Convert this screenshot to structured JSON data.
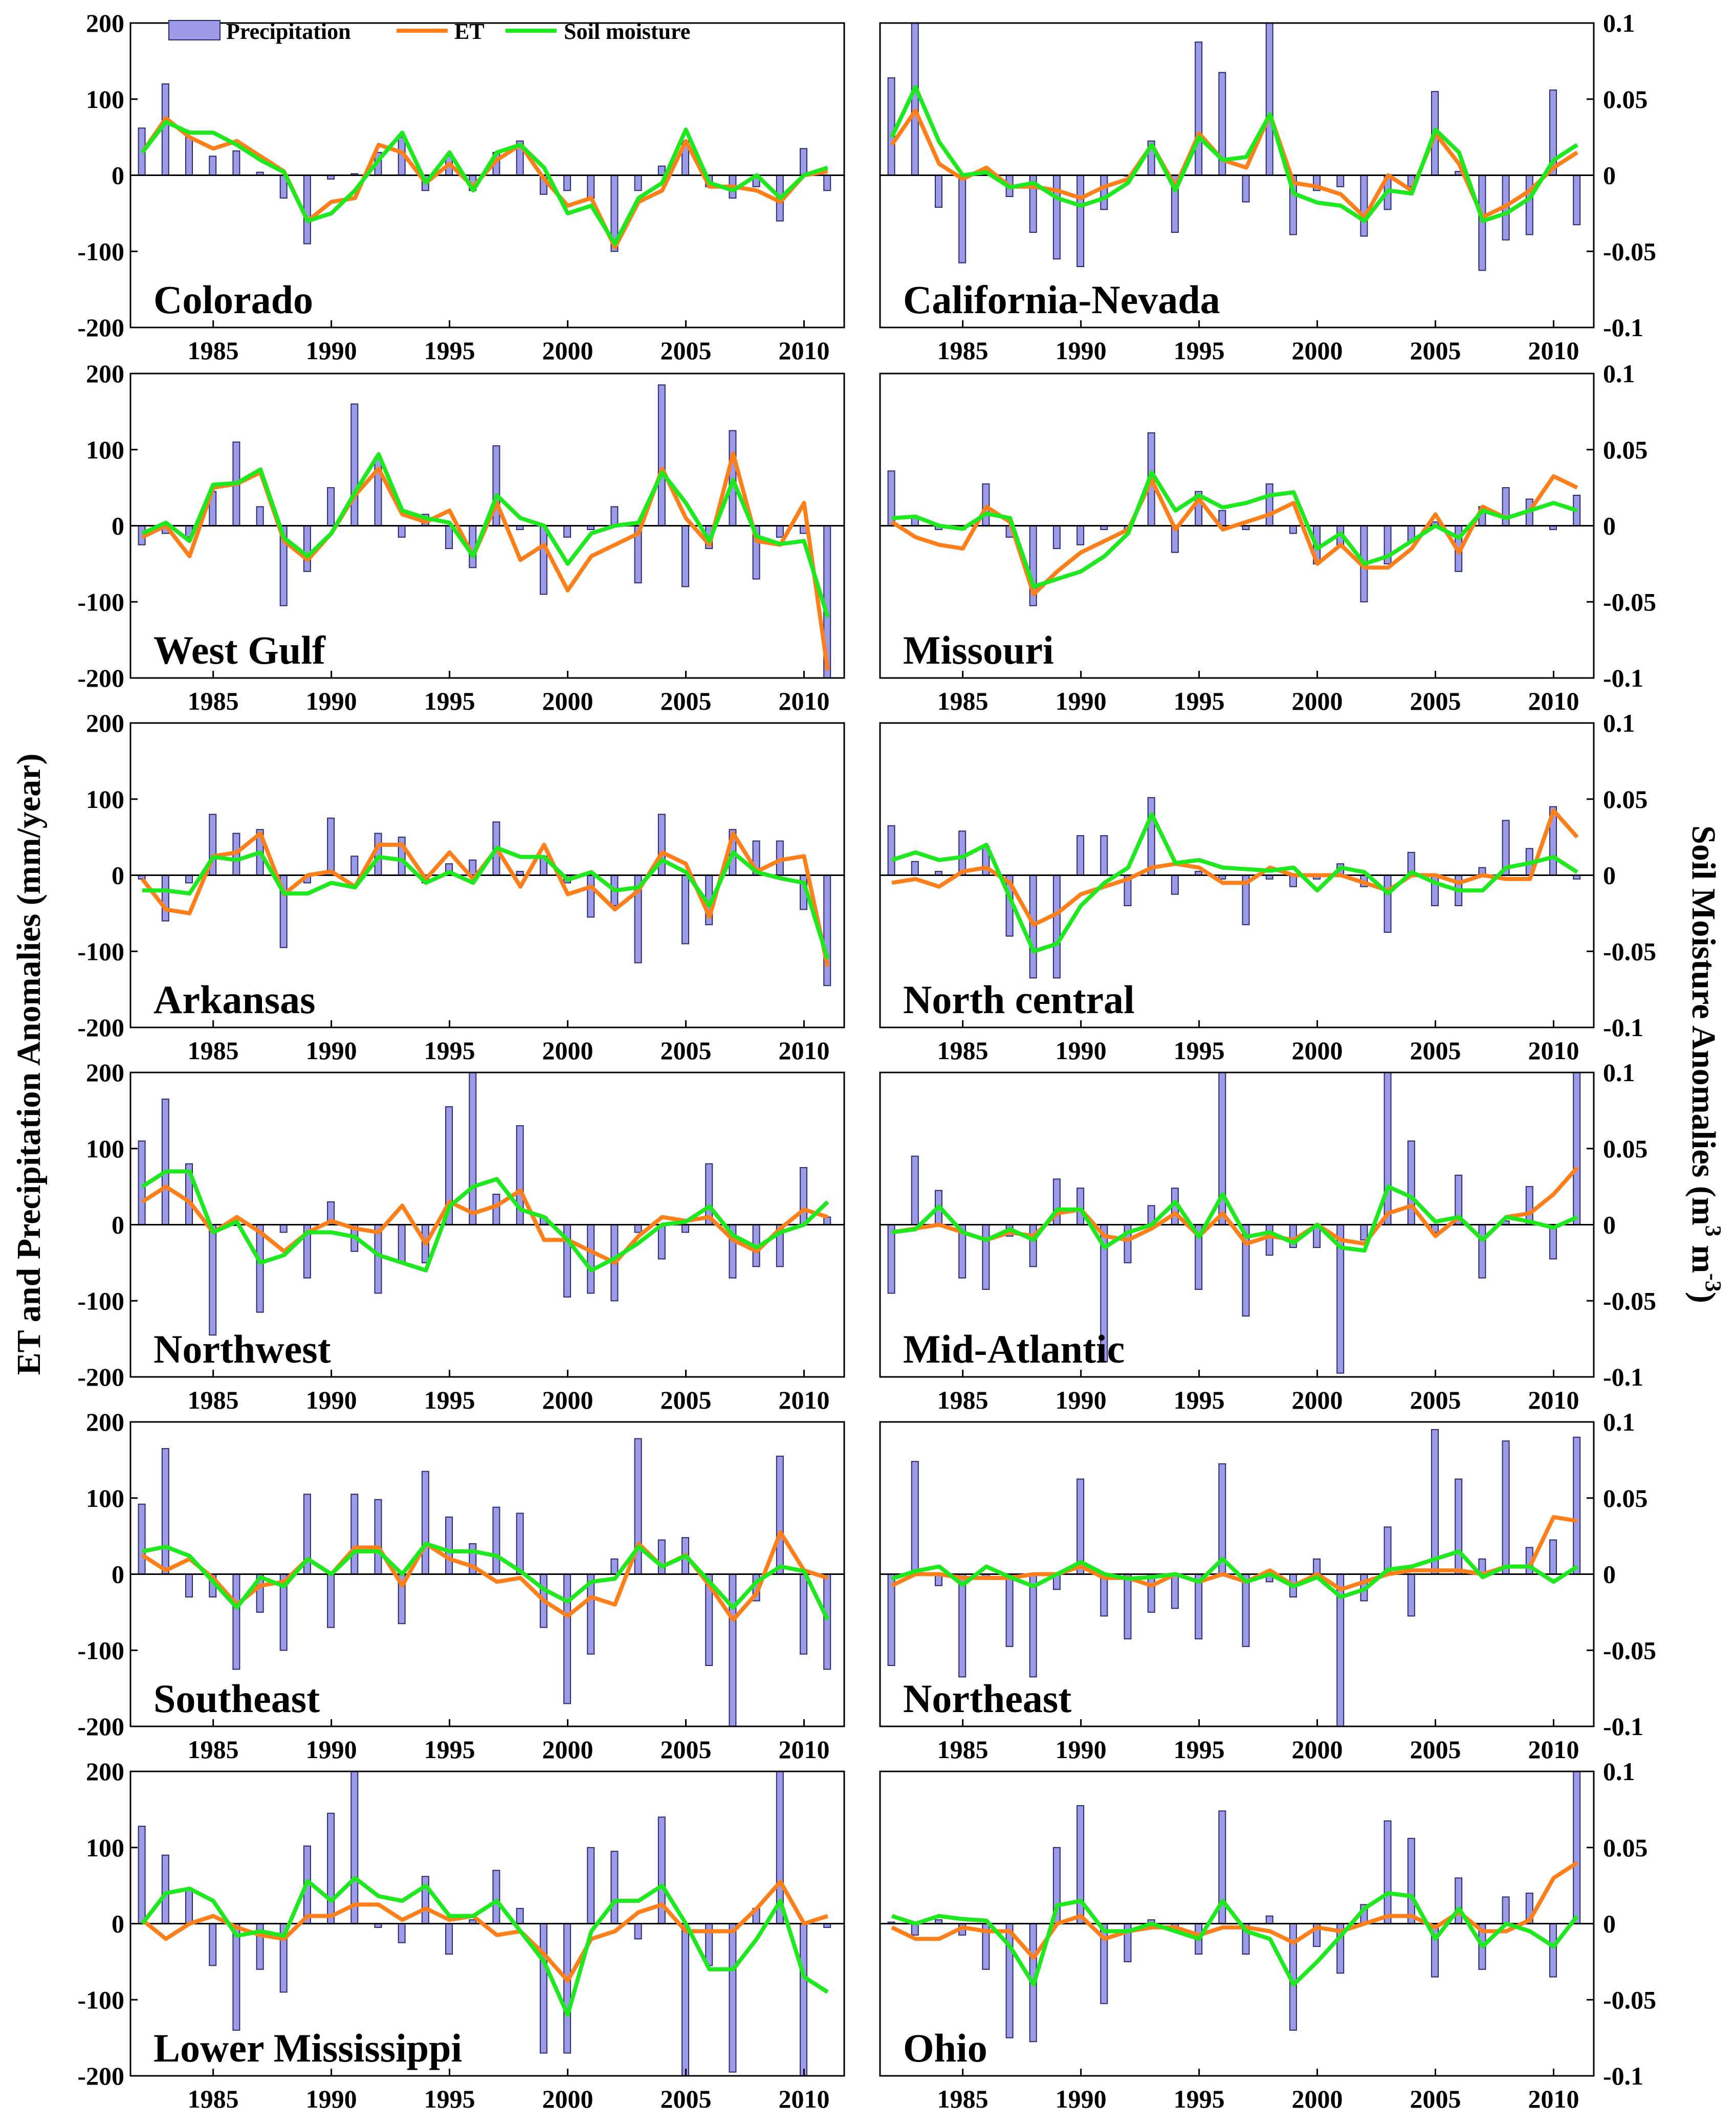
{
  "chart_data": {
    "type": "bar+line",
    "y_axis_left_label": "ET and Precipitation Anomalies (mm/year)",
    "y_axis_right_label": "Soil Moisture Anomalies (m³ m⁻³)",
    "y_axis_right_label_parts": [
      "Soil Moisture Anomalies (m",
      "3",
      " m",
      "-3",
      ")"
    ],
    "ylim_left": [
      -200,
      200
    ],
    "ylim_right": [
      -0.1,
      0.1
    ],
    "yticks_left": [
      "200",
      "100",
      "0",
      "-100",
      "-200"
    ],
    "yticks_right": [
      "0.1",
      "0.05",
      "0",
      "-0.05",
      "-0.1"
    ],
    "xticks": [
      "1985",
      "1990",
      "1995",
      "2000",
      "2005",
      "2010"
    ],
    "xlim": [
      1981.5,
      2011.7
    ],
    "years": [
      1982,
      1983,
      1984,
      1985,
      1986,
      1987,
      1988,
      1989,
      1990,
      1991,
      1992,
      1993,
      1994,
      1995,
      1996,
      1997,
      1998,
      1999,
      2000,
      2001,
      2002,
      2003,
      2004,
      2005,
      2006,
      2007,
      2008,
      2009,
      2010,
      2011
    ],
    "legend": [
      "Precipitation",
      "ET",
      "Soil moisture"
    ],
    "colors": {
      "precipitation": "#9b9bea",
      "precipitation_edge": "#2b2b6b",
      "et": "#ff7f1a",
      "soil_moisture": "#1ee81e"
    },
    "series_units": {
      "precipitation": "mm/year",
      "et": "mm/year",
      "soil_moisture": "m3 m-3"
    },
    "panels": [
      {
        "name": "Colorado",
        "precipitation": [
          62,
          120,
          50,
          25,
          32,
          4,
          -30,
          -90,
          -5,
          2,
          30,
          50,
          -20,
          25,
          -20,
          30,
          45,
          -25,
          -20,
          -30,
          -100,
          -20,
          12,
          45,
          -15,
          -30,
          -15,
          -60,
          35,
          -20
        ],
        "et": [
          30,
          75,
          50,
          35,
          45,
          25,
          5,
          -60,
          -35,
          -30,
          40,
          30,
          -10,
          15,
          -15,
          20,
          40,
          -5,
          -40,
          -30,
          -95,
          -35,
          -20,
          45,
          -15,
          -15,
          -20,
          -35,
          0,
          5
        ],
        "soil_moisture": [
          0.015,
          0.035,
          0.028,
          0.028,
          0.02,
          0.01,
          0.002,
          -0.03,
          -0.025,
          -0.01,
          0.01,
          0.028,
          -0.005,
          0.015,
          -0.01,
          0.015,
          0.02,
          0.005,
          -0.025,
          -0.02,
          -0.045,
          -0.015,
          -0.005,
          0.03,
          -0.005,
          -0.01,
          0,
          -0.015,
          0,
          0.005
        ]
      },
      {
        "name": "California-Nevada",
        "precipitation": [
          128,
          210,
          -42,
          -115,
          5,
          -28,
          -75,
          -110,
          -120,
          -45,
          0,
          45,
          -75,
          175,
          135,
          -35,
          210,
          -78,
          -20,
          -15,
          -80,
          -45,
          -15,
          110,
          5,
          -125,
          -85,
          -78,
          112,
          -65
        ],
        "et": [
          40,
          85,
          15,
          -5,
          10,
          -15,
          -15,
          -20,
          -30,
          -15,
          -5,
          40,
          -15,
          55,
          20,
          10,
          80,
          -10,
          -15,
          -25,
          -55,
          0,
          -20,
          55,
          15,
          -55,
          -40,
          -20,
          10,
          30
        ],
        "soil_moisture": [
          0.025,
          0.058,
          0.022,
          0,
          0.002,
          -0.008,
          -0.005,
          -0.015,
          -0.02,
          -0.015,
          -0.005,
          0.02,
          -0.01,
          0.025,
          0.01,
          0.012,
          0.04,
          -0.012,
          -0.018,
          -0.02,
          -0.03,
          -0.01,
          -0.012,
          0.03,
          0.015,
          -0.03,
          -0.025,
          -0.015,
          0.01,
          0.02
        ]
      },
      {
        "name": "West Gulf",
        "precipitation": [
          -25,
          -10,
          -15,
          45,
          110,
          25,
          -105,
          -60,
          50,
          160,
          90,
          -15,
          15,
          -30,
          -55,
          105,
          -5,
          -90,
          -15,
          -5,
          25,
          -75,
          185,
          -80,
          -30,
          125,
          -70,
          -15,
          -10,
          -200
        ],
        "et": [
          -15,
          0,
          -40,
          50,
          55,
          70,
          -20,
          -45,
          -10,
          40,
          75,
          15,
          5,
          20,
          -40,
          30,
          -45,
          -25,
          -85,
          -40,
          -25,
          -10,
          75,
          10,
          -25,
          95,
          -20,
          -25,
          30,
          -190
        ],
        "soil_moisture": [
          -0.005,
          0.002,
          -0.01,
          0.027,
          0.028,
          0.037,
          -0.008,
          -0.02,
          -0.005,
          0.022,
          0.047,
          0.01,
          0.005,
          0.002,
          -0.02,
          0.02,
          0.005,
          0,
          -0.025,
          -0.005,
          0,
          0.002,
          0.035,
          0.015,
          -0.01,
          0.03,
          -0.007,
          -0.012,
          -0.01,
          -0.06
        ]
      },
      {
        "name": "Missouri",
        "precipitation": [
          72,
          10,
          -5,
          -5,
          55,
          -15,
          -105,
          -30,
          -25,
          -5,
          -5,
          122,
          -35,
          45,
          20,
          -5,
          55,
          -10,
          -50,
          -25,
          -100,
          -50,
          -20,
          5,
          -60,
          25,
          50,
          35,
          -5,
          40
        ],
        "et": [
          5,
          -15,
          -25,
          -30,
          25,
          5,
          -90,
          -60,
          -35,
          -20,
          -5,
          60,
          -5,
          35,
          -5,
          5,
          15,
          30,
          -50,
          -25,
          -55,
          -55,
          -30,
          15,
          -35,
          25,
          10,
          20,
          65,
          50
        ],
        "soil_moisture": [
          0.005,
          0.006,
          0,
          -0.002,
          0.008,
          0.005,
          -0.04,
          -0.035,
          -0.03,
          -0.02,
          -0.005,
          0.035,
          0.01,
          0.02,
          0.012,
          0.015,
          0.02,
          0.022,
          -0.015,
          -0.005,
          -0.025,
          -0.02,
          -0.01,
          0,
          -0.008,
          0.01,
          0.005,
          0.01,
          0.015,
          0.01
        ]
      },
      {
        "name": "Arkansas",
        "precipitation": [
          -5,
          -60,
          -10,
          80,
          55,
          60,
          -95,
          -10,
          75,
          25,
          55,
          50,
          -10,
          15,
          20,
          70,
          5,
          25,
          -10,
          -55,
          -40,
          -115,
          80,
          -90,
          -65,
          60,
          45,
          45,
          -45,
          -145
        ],
        "et": [
          -5,
          -45,
          -50,
          25,
          30,
          55,
          -25,
          0,
          5,
          -15,
          40,
          40,
          -5,
          30,
          -5,
          35,
          -15,
          40,
          -25,
          -15,
          -45,
          -20,
          30,
          15,
          -55,
          55,
          5,
          20,
          25,
          -120
        ],
        "soil_moisture": [
          -0.01,
          -0.01,
          -0.012,
          0.012,
          0.01,
          0.015,
          -0.012,
          -0.012,
          -0.005,
          -0.008,
          0.012,
          0.01,
          -0.005,
          0.002,
          -0.005,
          0.018,
          0.012,
          0.012,
          -0.003,
          0.002,
          -0.01,
          -0.008,
          0.01,
          0.002,
          -0.02,
          0.015,
          0.002,
          -0.002,
          -0.005,
          -0.055
        ]
      },
      {
        "name": "North central",
        "precipitation": [
          65,
          18,
          5,
          58,
          38,
          -80,
          -135,
          -135,
          52,
          52,
          -40,
          102,
          -25,
          5,
          -5,
          -65,
          -5,
          -15,
          -5,
          15,
          -15,
          -75,
          30,
          -40,
          -40,
          10,
          72,
          35,
          90,
          -5
        ],
        "et": [
          -10,
          -5,
          -15,
          5,
          10,
          -10,
          -65,
          -50,
          -25,
          -15,
          -5,
          10,
          15,
          10,
          -10,
          -10,
          10,
          0,
          0,
          0,
          -10,
          -20,
          0,
          0,
          -10,
          0,
          -5,
          -5,
          85,
          50
        ],
        "soil_moisture": [
          0.01,
          0.015,
          0.01,
          0.012,
          0.02,
          -0.015,
          -0.05,
          -0.045,
          -0.02,
          -0.005,
          0.005,
          0.04,
          0.008,
          0.01,
          0.005,
          0.004,
          0.003,
          0.005,
          -0.01,
          0.005,
          0.002,
          -0.012,
          0.002,
          -0.005,
          -0.01,
          -0.01,
          0.005,
          0.008,
          0.012,
          0.002
        ]
      },
      {
        "name": "Northwest",
        "precipitation": [
          110,
          165,
          80,
          -145,
          0,
          -115,
          -10,
          -70,
          30,
          -35,
          -90,
          -50,
          -50,
          155,
          200,
          40,
          130,
          10,
          -95,
          -90,
          -100,
          -10,
          -45,
          -10,
          80,
          -70,
          -55,
          -55,
          75,
          10
        ],
        "et": [
          30,
          50,
          30,
          -10,
          10,
          -10,
          -35,
          -10,
          5,
          -5,
          -10,
          25,
          -25,
          30,
          15,
          25,
          45,
          -20,
          -20,
          -35,
          -50,
          -15,
          10,
          5,
          10,
          -20,
          -35,
          -5,
          20,
          10
        ],
        "soil_moisture": [
          0.025,
          0.035,
          0.035,
          -0.005,
          0.002,
          -0.025,
          -0.02,
          -0.005,
          -0.005,
          -0.008,
          -0.02,
          -0.025,
          -0.03,
          0.012,
          0.025,
          0.03,
          0.01,
          0.005,
          -0.01,
          -0.03,
          -0.022,
          -0.012,
          0,
          0.002,
          0.012,
          -0.007,
          -0.015,
          -0.005,
          0,
          0.015
        ]
      },
      {
        "name": "Mid-Atlantic",
        "precipitation": [
          -90,
          90,
          45,
          -70,
          -85,
          -15,
          -55,
          60,
          48,
          -180,
          -50,
          25,
          48,
          -85,
          200,
          -120,
          -40,
          -30,
          -30,
          -195,
          -20,
          200,
          110,
          -10,
          65,
          -70,
          5,
          50,
          -45,
          200
        ],
        "et": [
          -10,
          -5,
          0,
          -10,
          -20,
          -10,
          -15,
          15,
          20,
          -15,
          -20,
          -5,
          15,
          -15,
          15,
          -25,
          -15,
          -20,
          0,
          -20,
          -25,
          15,
          25,
          -15,
          10,
          -20,
          10,
          15,
          40,
          75
        ],
        "soil_moisture": [
          -0.005,
          -0.003,
          0.012,
          -0.005,
          -0.01,
          -0.003,
          -0.01,
          0.01,
          0.01,
          -0.015,
          -0.005,
          0,
          0.015,
          -0.008,
          0.02,
          -0.008,
          -0.005,
          -0.012,
          0,
          -0.015,
          -0.017,
          0.025,
          0.018,
          0.002,
          0.005,
          -0.01,
          0.005,
          0.002,
          -0.002,
          0.005
        ]
      },
      {
        "name": "Southeast",
        "precipitation": [
          92,
          165,
          -30,
          -30,
          -125,
          -50,
          -100,
          105,
          -70,
          105,
          98,
          -65,
          135,
          75,
          40,
          88,
          80,
          -70,
          -170,
          -105,
          20,
          178,
          45,
          48,
          -120,
          -200,
          -35,
          155,
          -105,
          -125
        ],
        "et": [
          25,
          5,
          20,
          -5,
          -40,
          -15,
          -10,
          20,
          0,
          35,
          35,
          -15,
          40,
          20,
          10,
          -10,
          -5,
          -35,
          -55,
          -30,
          -40,
          40,
          10,
          25,
          -15,
          -60,
          -25,
          55,
          5,
          -5
        ],
        "soil_moisture": [
          0.015,
          0.018,
          0.012,
          -0.005,
          -0.022,
          -0.002,
          -0.008,
          0.01,
          0,
          0.015,
          0.015,
          0,
          0.02,
          0.015,
          0.015,
          0.012,
          0.002,
          -0.01,
          -0.018,
          -0.005,
          -0.003,
          0.018,
          0.005,
          0.012,
          -0.005,
          -0.022,
          -0.005,
          0.005,
          0.002,
          -0.03
        ]
      },
      {
        "name": "Northeast",
        "precipitation": [
          -120,
          148,
          -15,
          -135,
          -5,
          -95,
          -135,
          -20,
          125,
          -55,
          -85,
          -50,
          -45,
          -85,
          145,
          -95,
          -10,
          -30,
          20,
          -200,
          -35,
          62,
          -55,
          190,
          125,
          20,
          175,
          35,
          45,
          180
        ],
        "et": [
          -15,
          0,
          0,
          -5,
          -5,
          -5,
          0,
          0,
          10,
          -5,
          -5,
          -15,
          0,
          -10,
          0,
          -10,
          5,
          -15,
          0,
          -20,
          -10,
          0,
          5,
          5,
          5,
          0,
          10,
          10,
          75,
          70
        ],
        "soil_moisture": [
          -0.003,
          0.002,
          0.005,
          -0.007,
          0.005,
          -0.002,
          -0.008,
          0,
          0.008,
          0,
          -0.003,
          -0.002,
          0,
          -0.005,
          0.01,
          -0.005,
          0,
          -0.008,
          -0.002,
          -0.015,
          -0.01,
          0.003,
          0.005,
          0.01,
          0.015,
          -0.002,
          0.005,
          0.005,
          -0.005,
          0.005
        ]
      },
      {
        "name": "Lower Mississippi",
        "precipitation": [
          128,
          90,
          45,
          -55,
          -140,
          -60,
          -90,
          102,
          145,
          200,
          -5,
          -25,
          62,
          -40,
          5,
          70,
          20,
          -170,
          -170,
          100,
          95,
          -20,
          140,
          -200,
          -55,
          -195,
          20,
          200,
          -200,
          -5
        ],
        "et": [
          5,
          -20,
          0,
          10,
          -5,
          -15,
          -20,
          10,
          10,
          25,
          25,
          5,
          20,
          5,
          10,
          -15,
          -10,
          -40,
          -75,
          -20,
          -10,
          15,
          25,
          -10,
          -10,
          -10,
          20,
          55,
          0,
          10
        ],
        "soil_moisture": [
          0,
          0.02,
          0.023,
          0.015,
          -0.008,
          -0.005,
          -0.008,
          0.028,
          0.015,
          0.03,
          0.018,
          0.015,
          0.025,
          0.005,
          0.005,
          0.015,
          -0.005,
          -0.025,
          -0.06,
          -0.005,
          0.015,
          0.015,
          0.025,
          0,
          -0.03,
          -0.03,
          -0.01,
          0.015,
          -0.035,
          -0.045
        ]
      },
      {
        "name": "Ohio",
        "precipitation": [
          2,
          -15,
          5,
          -15,
          -60,
          -150,
          -155,
          100,
          155,
          -105,
          -50,
          5,
          -10,
          -40,
          148,
          -40,
          10,
          -140,
          -30,
          -65,
          25,
          135,
          112,
          -70,
          60,
          -60,
          35,
          40,
          -70,
          200
        ],
        "et": [
          -5,
          -20,
          -20,
          -5,
          -10,
          -10,
          -45,
          0,
          10,
          -20,
          -10,
          -5,
          -5,
          -15,
          -5,
          -5,
          -10,
          -25,
          -5,
          -10,
          0,
          10,
          10,
          -5,
          15,
          -10,
          -10,
          5,
          60,
          80
        ],
        "soil_moisture": [
          0.005,
          0,
          0.005,
          0.003,
          0.002,
          -0.015,
          -0.04,
          0.012,
          0.015,
          -0.005,
          -0.005,
          0,
          -0.005,
          -0.01,
          0.015,
          -0.005,
          -0.01,
          -0.04,
          -0.025,
          -0.008,
          0.01,
          0.02,
          0.018,
          -0.01,
          0.01,
          -0.015,
          0,
          -0.005,
          -0.015,
          0.005
        ]
      }
    ]
  }
}
